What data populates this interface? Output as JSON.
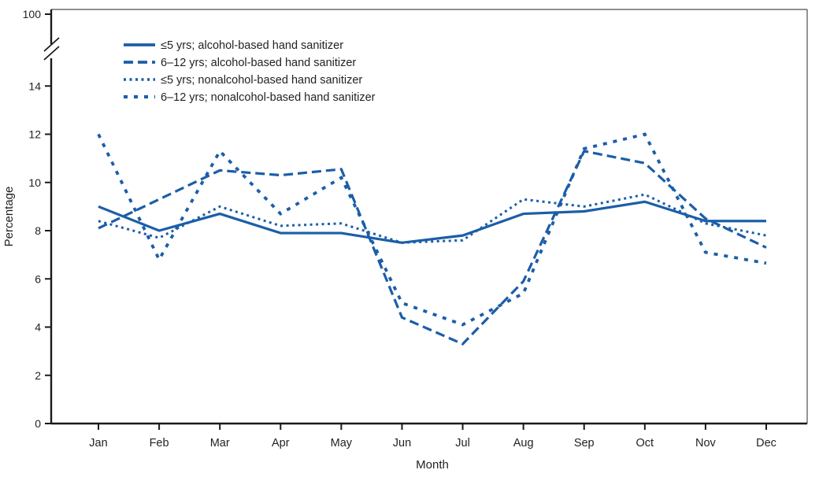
{
  "chart_data": {
    "type": "line",
    "title": "",
    "xlabel": "Month",
    "ylabel": "Percentage",
    "categories": [
      "Jan",
      "Feb",
      "Mar",
      "Apr",
      "May",
      "Jun",
      "Jul",
      "Aug",
      "Sep",
      "Oct",
      "Nov",
      "Dec"
    ],
    "y_axis": {
      "ticks": [
        0,
        2,
        4,
        6,
        8,
        10,
        12,
        14
      ],
      "top_tick_label": "100",
      "has_axis_break": true,
      "ylim_main": [
        0,
        15.5
      ]
    },
    "grid": false,
    "legend_position": "top-left-inside",
    "series": [
      {
        "name": "le5-alcohol",
        "label": "≤5 yrs;  alcohol-based hand sanitizer",
        "style": "solid",
        "values": [
          9.0,
          8.0,
          8.7,
          7.9,
          7.9,
          7.5,
          7.8,
          8.7,
          8.8,
          9.2,
          8.4,
          8.4
        ]
      },
      {
        "name": "6-12-alcohol",
        "label": "6–12 yrs; alcohol-based hand sanitizer",
        "style": "long-dash",
        "values": [
          8.1,
          9.3,
          10.5,
          10.3,
          10.55,
          4.4,
          3.3,
          5.9,
          11.3,
          10.8,
          8.5,
          7.3
        ]
      },
      {
        "name": "le5-nonalcohol",
        "label": "≤5 yrs;  nonalcohol-based hand sanitizer",
        "style": "dotted",
        "values": [
          8.4,
          7.7,
          9.0,
          8.2,
          8.3,
          7.5,
          7.6,
          9.3,
          9.0,
          9.5,
          8.3,
          7.8
        ]
      },
      {
        "name": "6-12-nonalcohol",
        "label": "6–12 yrs; nonalcohol-based hand sanitizer",
        "style": "square-dash",
        "values": [
          12.0,
          6.8,
          11.3,
          8.7,
          10.2,
          5.0,
          4.1,
          5.4,
          11.4,
          12.0,
          7.1,
          6.65
        ]
      }
    ]
  },
  "colors": {
    "line_blue": "#1b5ea8",
    "axis_black": "#1a1a1a",
    "frame_gray": "#4d4d4d",
    "text": "#231f20"
  }
}
